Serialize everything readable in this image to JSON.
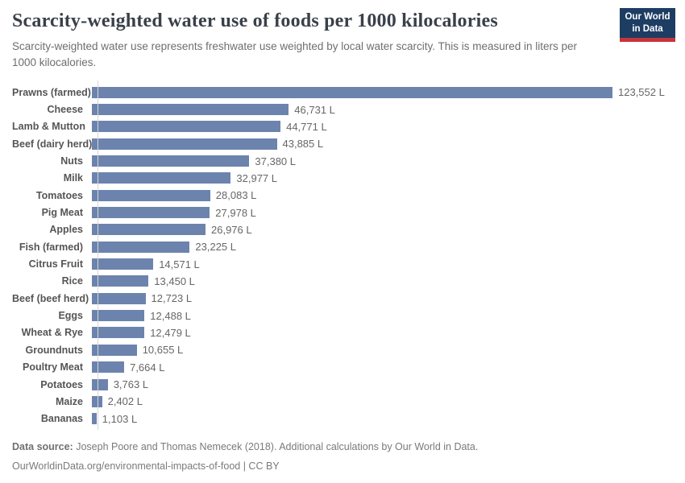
{
  "header": {
    "title": "Scarcity-weighted water use of foods per 1000 kilocalories",
    "subtitle": "Scarcity-weighted water use represents freshwater use weighted by local water scarcity. This is measured in liters per 1000 kilocalories.",
    "logo": {
      "line1": "Our World",
      "line2": "in Data"
    }
  },
  "chart_data": {
    "type": "bar",
    "orientation": "horizontal",
    "title": "Scarcity-weighted water use of foods per 1000 kilocalories",
    "xlabel": "",
    "ylabel": "",
    "unit": "liters per 1000 kilocalories",
    "value_suffix": " L",
    "xlim": [
      0,
      123552
    ],
    "grid": false,
    "legend": "none",
    "bar_color": "#6c84ad",
    "categories": [
      "Prawns (farmed)",
      "Cheese",
      "Lamb & Mutton",
      "Beef (dairy herd)",
      "Nuts",
      "Milk",
      "Tomatoes",
      "Pig Meat",
      "Apples",
      "Fish (farmed)",
      "Citrus Fruit",
      "Rice",
      "Beef (beef herd)",
      "Eggs",
      "Wheat & Rye",
      "Groundnuts",
      "Poultry Meat",
      "Potatoes",
      "Maize",
      "Bananas"
    ],
    "values": [
      123552,
      46731,
      44771,
      43885,
      37380,
      32977,
      28083,
      27978,
      26976,
      23225,
      14571,
      13450,
      12723,
      12488,
      12479,
      10655,
      7664,
      3763,
      2402,
      1103
    ]
  },
  "footer": {
    "source_label": "Data source:",
    "source_text": " Joseph Poore and Thomas Nemecek (2018). Additional calculations by Our World in Data.",
    "license_line": "OurWorldinData.org/environmental-impacts-of-food | CC BY"
  }
}
